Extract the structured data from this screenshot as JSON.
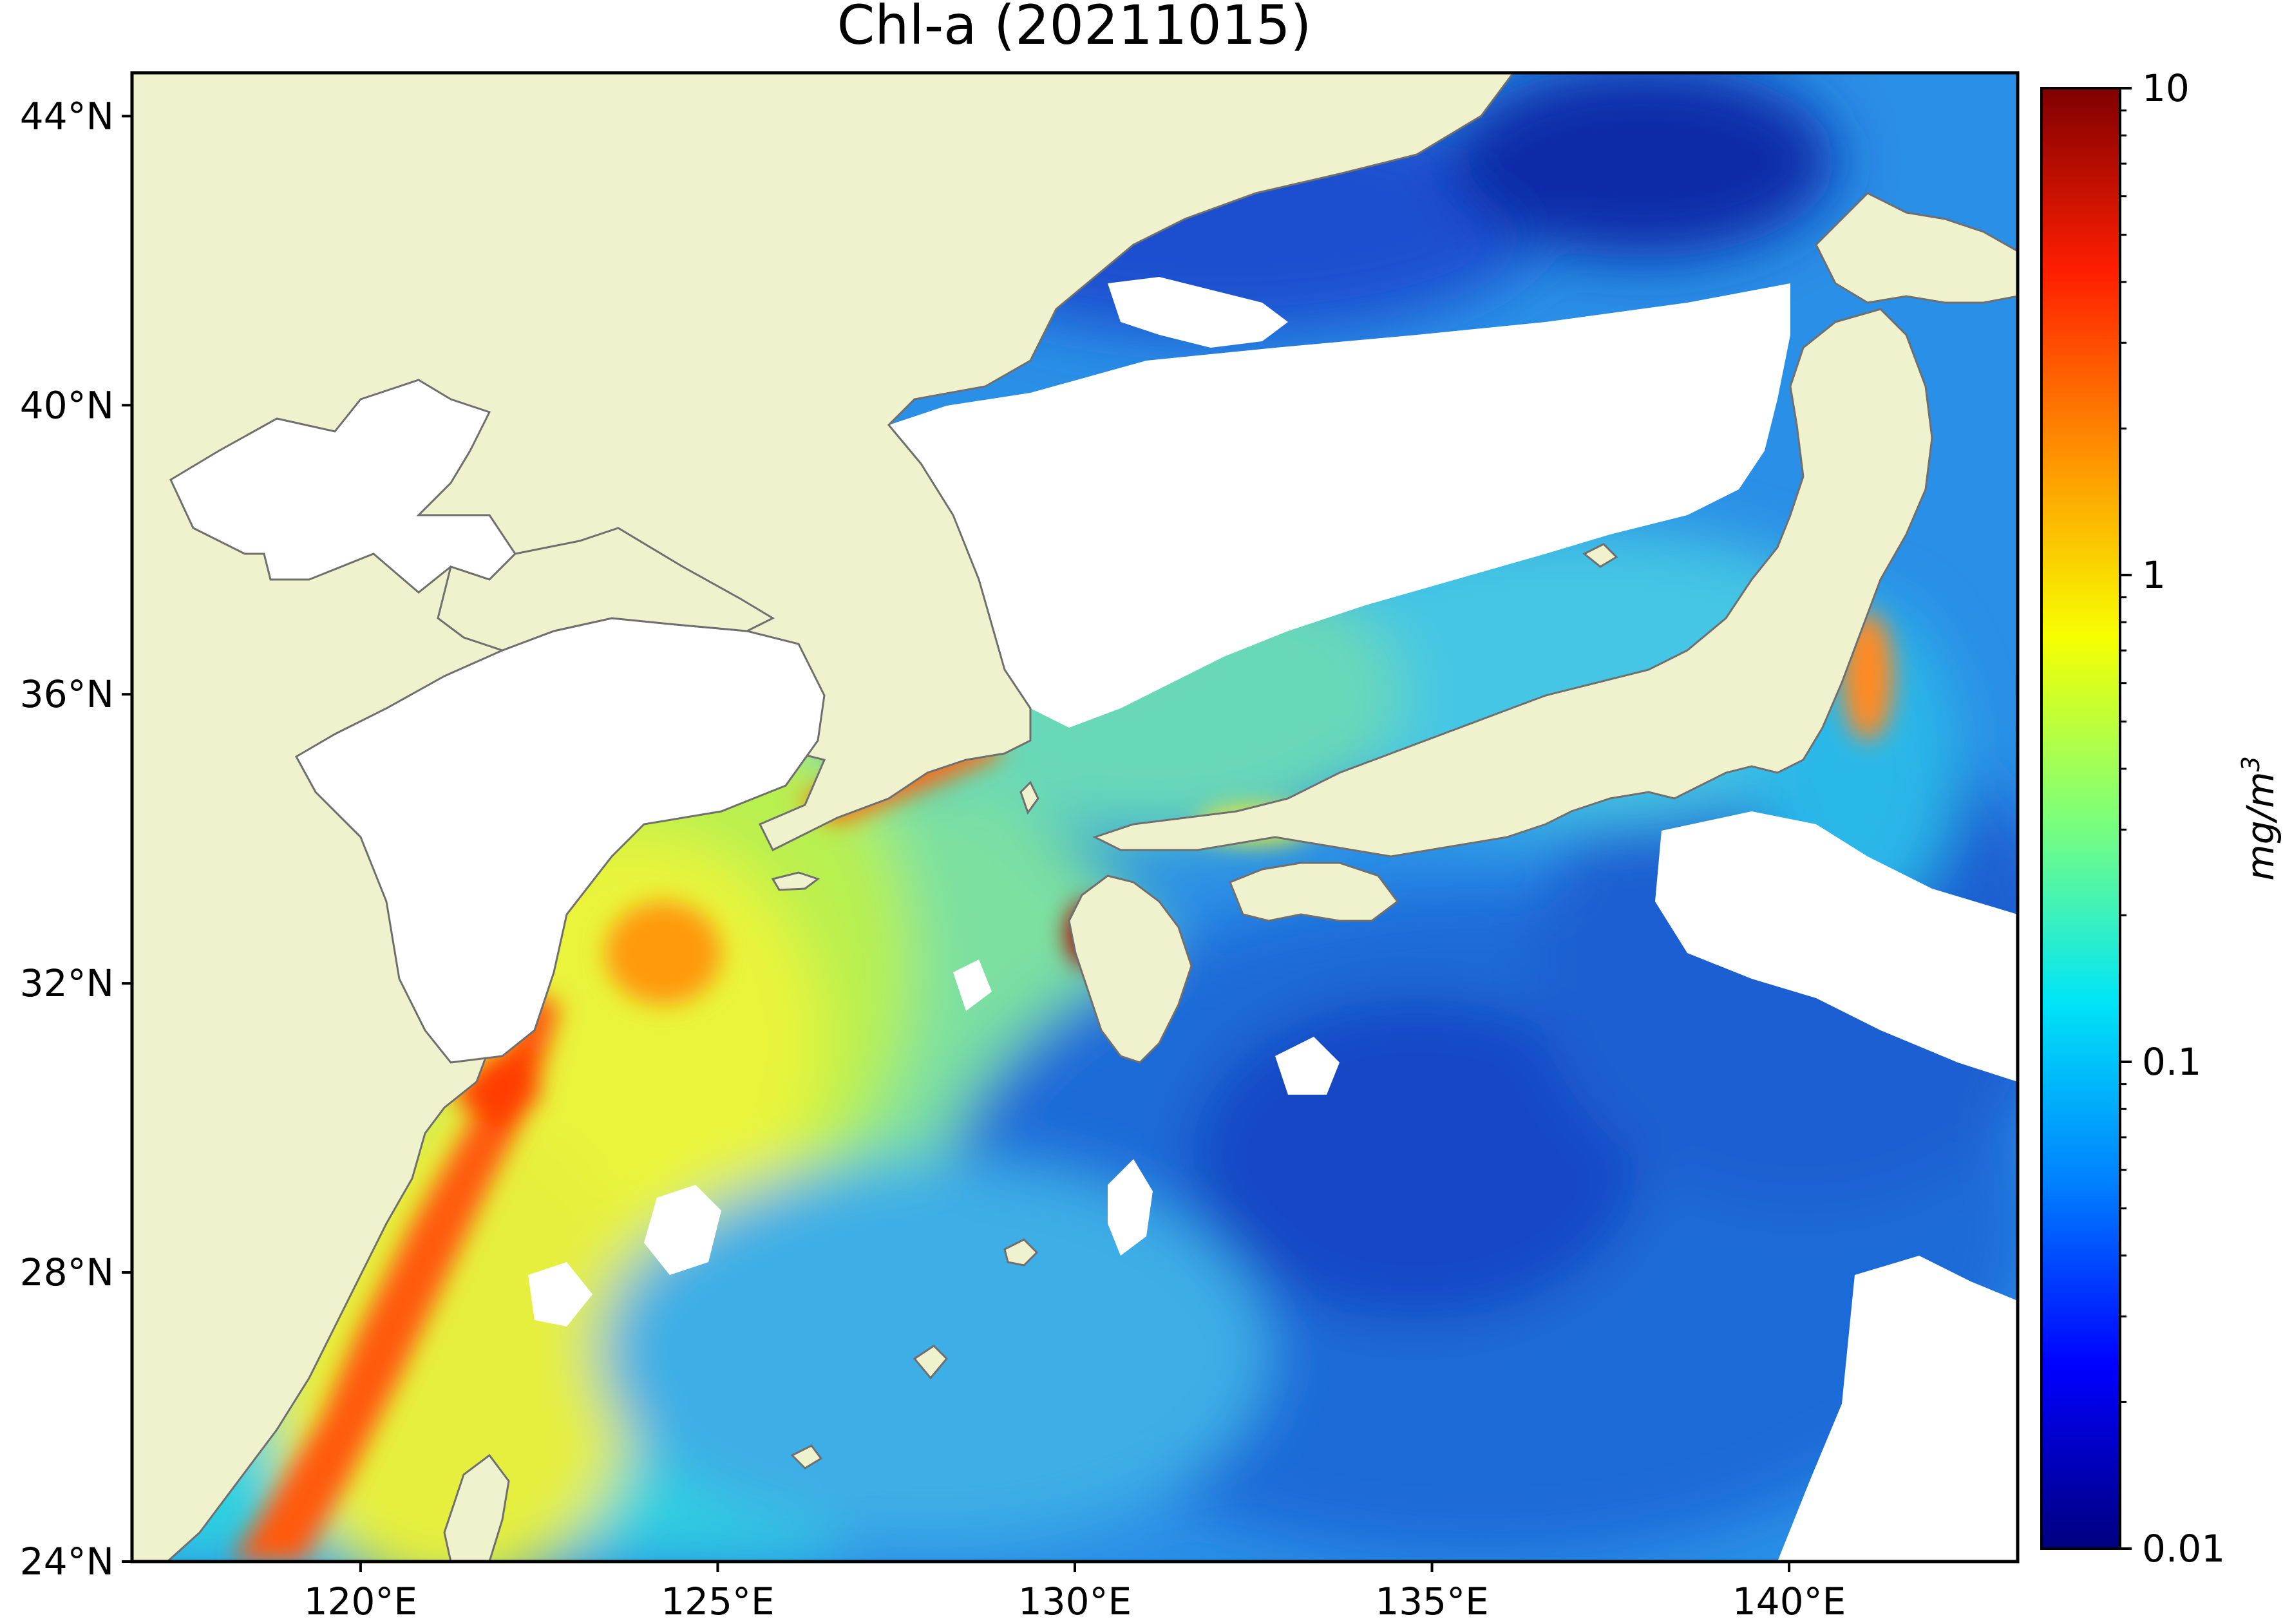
{
  "title": "Chl-a (20211015)",
  "colors": {
    "land": "#eff2cc",
    "no_data": "#ffffff",
    "coastline": "#6f6f6f",
    "frame": "#000000"
  },
  "map": {
    "projection": "equirectangular",
    "lon_range": [
      116.8,
      143.2
    ],
    "lat_range": [
      24,
      44.6
    ],
    "x_ticks": [
      "120°E",
      "125°E",
      "130°E",
      "135°E",
      "140°E"
    ],
    "y_ticks": [
      "44°N",
      "40°N",
      "36°N",
      "32°N",
      "28°N",
      "24°N"
    ],
    "regions": {
      "land": [
        "China mainland",
        "Korean Peninsula",
        "Japan (Honshu)",
        "Hokkaido",
        "Kyushu",
        "Shikoku",
        "Taiwan"
      ],
      "no_data": [
        "Bohai Sea",
        "Yellow Sea",
        "northern Sea of Japan",
        "cloud gaps"
      ]
    }
  },
  "colorbar": {
    "label_base": "mg/m",
    "label_exp": "3",
    "scale": "log",
    "range": [
      0.01,
      10
    ],
    "ticks": [
      "10",
      "1",
      "0.1",
      "0.01"
    ],
    "colormap": "jet"
  }
}
